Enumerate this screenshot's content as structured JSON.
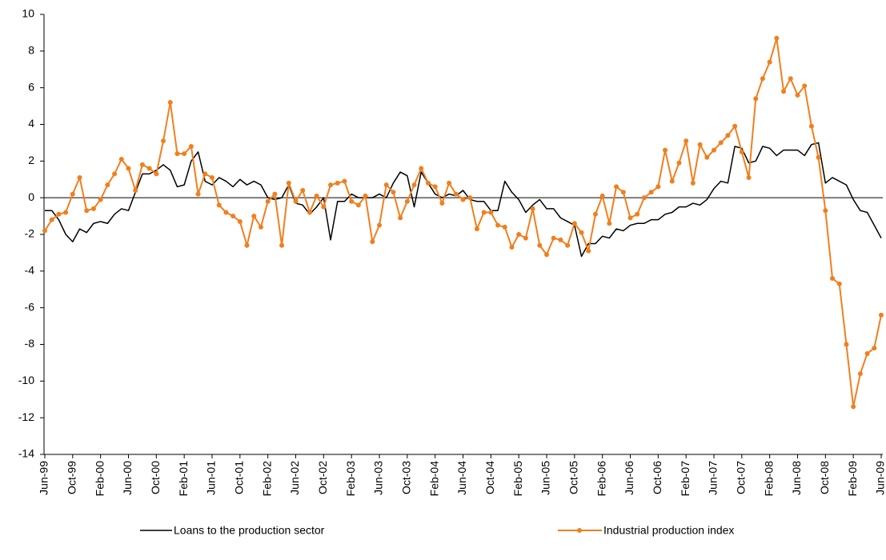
{
  "chart_data": {
    "type": "line",
    "categories": [
      "Jun-99",
      null,
      null,
      null,
      "Oct-99",
      null,
      null,
      null,
      "Feb-00",
      null,
      null,
      null,
      "Jun-00",
      null,
      null,
      null,
      "Oct-00",
      null,
      null,
      null,
      "Feb-01",
      null,
      null,
      null,
      "Jun-01",
      null,
      null,
      null,
      "Oct-01",
      null,
      null,
      null,
      "Feb-02",
      null,
      null,
      null,
      "Jun-02",
      null,
      null,
      null,
      "Oct-02",
      null,
      null,
      null,
      "Feb-03",
      null,
      null,
      null,
      "Jun-03",
      null,
      null,
      null,
      "Oct-03",
      null,
      null,
      null,
      "Feb-04",
      null,
      null,
      null,
      "Jun-04",
      null,
      null,
      null,
      "Oct-04",
      null,
      null,
      null,
      "Feb-05",
      null,
      null,
      null,
      "Jun-05",
      null,
      null,
      null,
      "Oct-05",
      null,
      null,
      null,
      "Feb-06",
      null,
      null,
      null,
      "Jun-06",
      null,
      null,
      null,
      "Oct-06",
      null,
      null,
      null,
      "Feb-07",
      null,
      null,
      null,
      "Jun-07",
      null,
      null,
      null,
      "Oct-07",
      null,
      null,
      null,
      "Feb-08",
      null,
      null,
      null,
      "Jun-08",
      null,
      null,
      null,
      "Oct-08",
      null,
      null,
      null,
      "Feb-09",
      null,
      null,
      null,
      "Jun-09"
    ],
    "series": [
      {
        "name": "Loans to the production sector",
        "color": "#000000",
        "markers": false,
        "values": [
          -0.7,
          -0.7,
          -1.2,
          -2.0,
          -2.4,
          -1.7,
          -1.9,
          -1.4,
          -1.3,
          -1.4,
          -0.9,
          -0.6,
          -0.7,
          0.3,
          1.3,
          1.3,
          1.5,
          1.8,
          1.5,
          0.6,
          0.7,
          2.0,
          2.5,
          0.9,
          0.7,
          1.1,
          0.9,
          0.6,
          1.0,
          0.7,
          0.9,
          0.7,
          0,
          -0.1,
          0,
          0.7,
          -0.3,
          -0.4,
          -0.9,
          -0.5,
          0,
          -2.3,
          -0.2,
          -0.2,
          0.2,
          0,
          0,
          0,
          0.2,
          0,
          0.8,
          1.4,
          1.2,
          -0.5,
          1.4,
          0.8,
          0.2,
          0,
          0.2,
          0.1,
          0.4,
          -0.1,
          -0.2,
          -0.2,
          -0.7,
          -0.7,
          0.9,
          0.3,
          -0.1,
          -0.8,
          -0.4,
          -0.1,
          -0.6,
          -0.6,
          -1.1,
          -1.3,
          -1.5,
          -3.2,
          -2.5,
          -2.5,
          -2.1,
          -2.2,
          -1.7,
          -1.8,
          -1.5,
          -1.4,
          -1.4,
          -1.2,
          -1.2,
          -0.9,
          -0.8,
          -0.5,
          -0.5,
          -0.3,
          -0.4,
          -0.1,
          0.5,
          0.9,
          0.8,
          2.8,
          2.7,
          1.9,
          2.0,
          2.8,
          2.7,
          2.3,
          2.6,
          2.6,
          2.6,
          2.3,
          2.9,
          3.0,
          0.8,
          1.1,
          0.9,
          0.7,
          -0.1,
          -0.7,
          -0.8,
          -1.5,
          -2.2
        ]
      },
      {
        "name": "Industrial production index",
        "color": "#f07f1e",
        "markers": true,
        "values": [
          -1.8,
          -1.2,
          -0.9,
          -0.8,
          0.2,
          1.1,
          -0.7,
          -0.6,
          -0.1,
          0.7,
          1.3,
          2.1,
          1.6,
          0.4,
          1.8,
          1.6,
          1.3,
          3.1,
          5.2,
          2.4,
          2.4,
          2.8,
          0.2,
          1.3,
          1.1,
          -0.4,
          -0.8,
          -1.0,
          -1.3,
          -2.6,
          -1.0,
          -1.6,
          -0.2,
          0.2,
          -2.6,
          0.8,
          -0.2,
          0.4,
          -0.8,
          0.1,
          -0.5,
          0.7,
          0.8,
          0.9,
          -0.2,
          -0.4,
          0.1,
          -2.4,
          -1.5,
          0.7,
          0.3,
          -1.1,
          -0.2,
          0.7,
          1.6,
          0.8,
          0.6,
          -0.3,
          0.8,
          0.2,
          -0.1,
          0,
          -1.7,
          -0.8,
          -0.8,
          -1.5,
          -1.6,
          -2.7,
          -2.0,
          -2.2,
          -0.6,
          -2.6,
          -3.1,
          -2.2,
          -2.3,
          -2.6,
          -1.4,
          -1.9,
          -2.9,
          -0.9,
          0.1,
          -1.4,
          0.6,
          0.3,
          -1.1,
          -0.9,
          0,
          0.3,
          0.6,
          2.6,
          0.9,
          1.9,
          3.1,
          0.8,
          2.9,
          2.2,
          2.6,
          3.0,
          3.4,
          3.9,
          2.5,
          1.1,
          5.4,
          6.5,
          7.4,
          8.7,
          5.8,
          6.5,
          5.6,
          6.1,
          3.9,
          2.2,
          -0.7,
          -4.4,
          -4.7,
          -8.0,
          -11.4,
          -9.6,
          -8.5,
          -8.2,
          -6.4
        ]
      }
    ],
    "ylim": [
      -14,
      10
    ],
    "yticks": [
      -14,
      -12,
      -10,
      -8,
      -6,
      -4,
      -2,
      0,
      2,
      4,
      6,
      8,
      10
    ],
    "grid": false
  }
}
